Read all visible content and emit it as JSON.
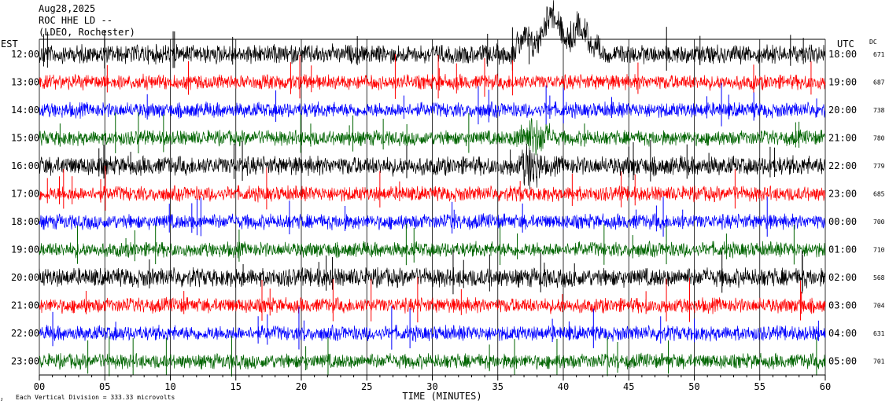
{
  "header": {
    "date": "Aug28,2025",
    "station": "ROC HHE LD --",
    "network": "(LDEO, Rochester)"
  },
  "left_zone_label": "EST",
  "right_zone_label": "UTC",
  "dc_label": "DC",
  "footer": {
    "scale_note": "Each Vertical Division =  333.33 microvolts",
    "corner_mark": "ᴊ"
  },
  "colors": {
    "black": "#000000",
    "red": "#ff0000",
    "blue": "#0000ff",
    "green": "#006400",
    "cycle": [
      "#000000",
      "#ff0000",
      "#0000ff",
      "#006400"
    ]
  },
  "chart_data": {
    "type": "line",
    "title": "",
    "xlabel": "TIME (MINUTES)",
    "ylabel": "",
    "xlim": [
      0,
      60
    ],
    "x_ticks": [
      "00",
      "05",
      "10",
      "15",
      "20",
      "25",
      "30",
      "35",
      "40",
      "45",
      "50",
      "55",
      "60"
    ],
    "grid": "vertical lines every 5 minutes",
    "rows": [
      {
        "est": "12:00",
        "utc": "18:00",
        "dc": "671",
        "color": "black"
      },
      {
        "est": "13:00",
        "utc": "19:00",
        "dc": "687",
        "color": "red"
      },
      {
        "est": "14:00",
        "utc": "20:00",
        "dc": "738",
        "color": "blue"
      },
      {
        "est": "15:00",
        "utc": "21:00",
        "dc": "780",
        "color": "green"
      },
      {
        "est": "16:00",
        "utc": "22:00",
        "dc": "779",
        "color": "black"
      },
      {
        "est": "17:00",
        "utc": "23:00",
        "dc": "685",
        "color": "red"
      },
      {
        "est": "18:00",
        "utc": "00:00",
        "dc": "700",
        "color": "blue"
      },
      {
        "est": "19:00",
        "utc": "01:00",
        "dc": "710",
        "color": "green"
      },
      {
        "est": "20:00",
        "utc": "02:00",
        "dc": "568",
        "color": "black"
      },
      {
        "est": "21:00",
        "utc": "03:00",
        "dc": "704",
        "color": "red"
      },
      {
        "est": "22:00",
        "utc": "04:00",
        "dc": "631",
        "color": "blue"
      },
      {
        "est": "23:00",
        "utc": "05:00",
        "dc": "701",
        "color": "green"
      }
    ],
    "events": [
      {
        "row": 0,
        "start_min": 36.0,
        "end_min": 43.0,
        "note_type": "large excursion"
      },
      {
        "row": 3,
        "start_min": 36.0,
        "end_min": 39.5,
        "note_type": "moderate excursion"
      },
      {
        "row": 4,
        "start_min": 36.5,
        "end_min": 38.5,
        "note_type": "moderate excursion"
      }
    ]
  }
}
